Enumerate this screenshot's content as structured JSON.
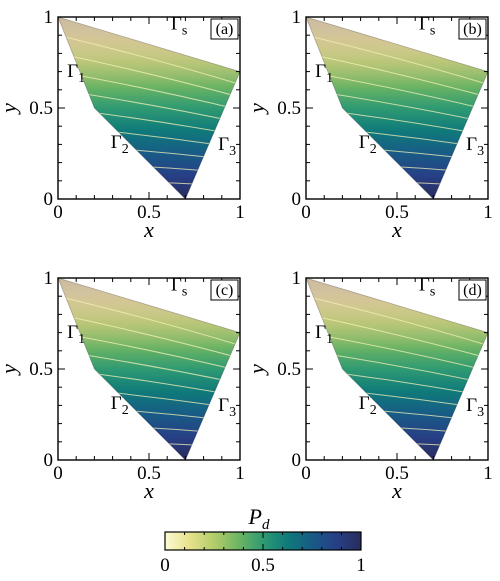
{
  "chart_data": {
    "type": "heatmap",
    "panels": [
      {
        "id": "a",
        "label": "(a)"
      },
      {
        "id": "b",
        "label": "(b)"
      },
      {
        "id": "c",
        "label": "(c)"
      },
      {
        "id": "d",
        "label": "(d)"
      }
    ],
    "xlabel": "x",
    "ylabel": "y",
    "xlim": [
      0,
      1
    ],
    "ylim": [
      0,
      1
    ],
    "xticks": [
      0,
      0.5,
      1
    ],
    "xtick_labels": [
      "0",
      "0.5",
      "1"
    ],
    "yticks": [
      0,
      0.5,
      1
    ],
    "ytick_labels": [
      "0",
      "0.5",
      "1"
    ],
    "domain_polygon": [
      [
        0,
        1
      ],
      [
        1,
        0.7
      ],
      [
        0.7,
        0
      ],
      [
        0.2,
        0.5
      ]
    ],
    "boundaries": [
      {
        "name": "Γs",
        "base": "Γ",
        "sub": "s",
        "position": [
          0.62,
          0.93
        ]
      },
      {
        "name": "Γ1",
        "base": "Γ",
        "sub": "1",
        "position": [
          0.05,
          0.67
        ]
      },
      {
        "name": "Γ2",
        "base": "Γ",
        "sub": "2",
        "position": [
          0.29,
          0.28
        ]
      },
      {
        "name": "Γ3",
        "base": "Γ",
        "sub": "3",
        "position": [
          0.88,
          0.27
        ]
      }
    ],
    "colorbar": {
      "title": "P",
      "title_sub": "d",
      "range": [
        0,
        1
      ],
      "ticks": [
        0,
        0.5,
        1
      ],
      "tick_labels": [
        "0",
        "0.5",
        "1"
      ],
      "colors": [
        "#fdfbd3",
        "#e7e18c",
        "#b3cd6a",
        "#6db563",
        "#2f9a72",
        "#0f7a7a",
        "#185b86",
        "#273f86",
        "#282c5c"
      ]
    },
    "top_shade_color": "#c7b49a",
    "contour_color": "#f5f1b8",
    "contour_levels": [
      0.1,
      0.2,
      0.3,
      0.4,
      0.5,
      0.6,
      0.7,
      0.8,
      0.9
    ]
  }
}
